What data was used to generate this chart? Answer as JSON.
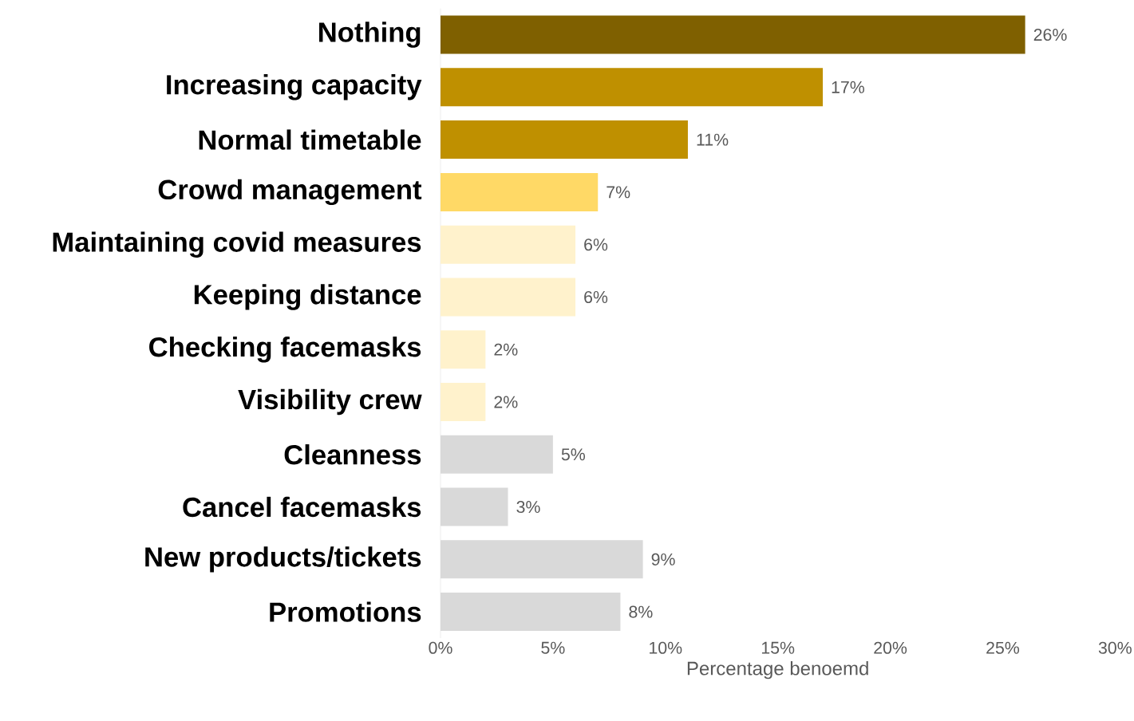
{
  "chart_data": {
    "type": "bar",
    "orientation": "horizontal",
    "categories": [
      "Nothing",
      "Increasing capacity",
      "Normal timetable",
      "Crowd management",
      "Maintaining covid measures",
      "Keeping distance",
      "Checking facemasks",
      "Visibility crew",
      "Cleanness",
      "Cancel facemasks",
      "New products/tickets",
      "Promotions"
    ],
    "values": [
      26,
      17,
      11,
      7,
      6,
      6,
      2,
      2,
      5,
      3,
      9,
      8
    ],
    "value_labels": [
      "26%",
      "17%",
      "11%",
      "7%",
      "6%",
      "6%",
      "2%",
      "2%",
      "5%",
      "3%",
      "9%",
      "8%"
    ],
    "colors": [
      "#7f6000",
      "#bf9000",
      "#bf9000",
      "#ffd966",
      "#fff2cc",
      "#fff2cc",
      "#fff2cc",
      "#fff2cc",
      "#d9d9d9",
      "#d9d9d9",
      "#d9d9d9",
      "#d9d9d9"
    ],
    "xlabel": "Percentage benoemd",
    "xlim": [
      0,
      30
    ],
    "xticks": [
      {
        "value": 0,
        "label": "0%"
      },
      {
        "value": 5,
        "label": "5%"
      },
      {
        "value": 10,
        "label": "10%"
      },
      {
        "value": 15,
        "label": "15%"
      },
      {
        "value": 20,
        "label": "20%"
      },
      {
        "value": 25,
        "label": "25%"
      },
      {
        "value": 30,
        "label": "30%"
      }
    ],
    "data_labels": false
  }
}
